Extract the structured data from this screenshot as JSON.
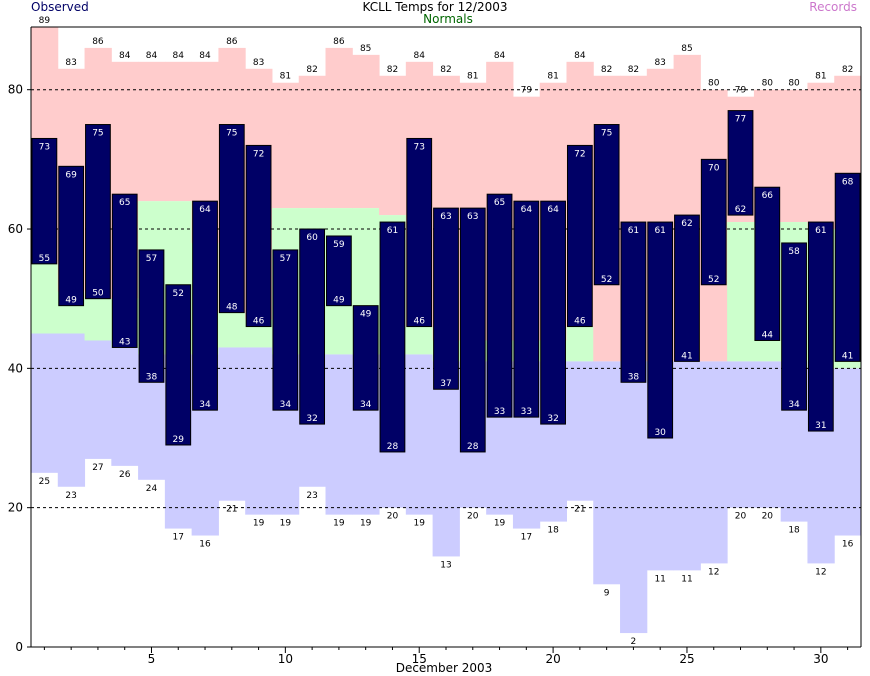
{
  "chart_data": {
    "type": "bar",
    "title": "KCLL Temps for 12/2003",
    "legend": {
      "observed": "Observed",
      "normals": "Normals",
      "records": "Records"
    },
    "xlabel": "December 2003",
    "xlim": [
      1,
      31
    ],
    "ylim": [
      0,
      89
    ],
    "x_ticks": [
      5,
      10,
      15,
      20,
      25,
      30
    ],
    "y_ticks": [
      0,
      20,
      40,
      60,
      80
    ],
    "grid": "dashed horizontal at 20, 40, 60, 80",
    "days": [
      1,
      2,
      3,
      4,
      5,
      6,
      7,
      8,
      9,
      10,
      11,
      12,
      13,
      14,
      15,
      16,
      17,
      18,
      19,
      20,
      21,
      22,
      23,
      24,
      25,
      26,
      27,
      28,
      29,
      30,
      31
    ],
    "series": [
      {
        "name": "Observed",
        "high": [
          73,
          69,
          75,
          65,
          57,
          52,
          64,
          75,
          72,
          57,
          60,
          59,
          49,
          61,
          73,
          63,
          63,
          65,
          64,
          64,
          72,
          75,
          61,
          61,
          62,
          70,
          77,
          66,
          58,
          61,
          68
        ],
        "low": [
          55,
          49,
          50,
          43,
          38,
          29,
          34,
          48,
          46,
          34,
          32,
          49,
          34,
          28,
          46,
          37,
          28,
          33,
          33,
          32,
          46,
          52,
          38,
          30,
          41,
          52,
          62,
          44,
          34,
          31,
          41
        ]
      },
      {
        "name": "Normals",
        "high": [
          55,
          51,
          50,
          50,
          64,
          64,
          58,
          48,
          47,
          63,
          63,
          63,
          63,
          62,
          46,
          44,
          44,
          44,
          44,
          44,
          46,
          41,
          41,
          41,
          41,
          41,
          61,
          61,
          61,
          60,
          60
        ],
        "low": [
          45,
          45,
          44,
          43,
          42,
          42,
          42,
          43,
          43,
          42,
          42,
          42,
          42,
          42,
          42,
          41,
          41,
          41,
          41,
          41,
          41,
          41,
          41,
          41,
          41,
          41,
          41,
          41,
          41,
          40,
          40
        ]
      },
      {
        "name": "Records",
        "high": [
          89,
          83,
          86,
          84,
          84,
          84,
          84,
          86,
          83,
          81,
          82,
          86,
          85,
          82,
          84,
          82,
          81,
          84,
          79,
          81,
          84,
          82,
          82,
          83,
          85,
          80,
          79,
          80,
          80,
          81,
          82
        ],
        "low": [
          25,
          23,
          27,
          26,
          24,
          17,
          16,
          21,
          19,
          19,
          23,
          19,
          19,
          20,
          19,
          13,
          20,
          19,
          17,
          18,
          21,
          9,
          2,
          11,
          11,
          12,
          20,
          20,
          18,
          12,
          16
        ]
      }
    ],
    "colors": {
      "observed": "#000066",
      "normals": "#ccffcc",
      "records_high": "#ffcccc",
      "records_low": "#ccccff",
      "observed_label": "#000066",
      "normals_label": "#006600",
      "records_label": "#cc77cc"
    }
  }
}
